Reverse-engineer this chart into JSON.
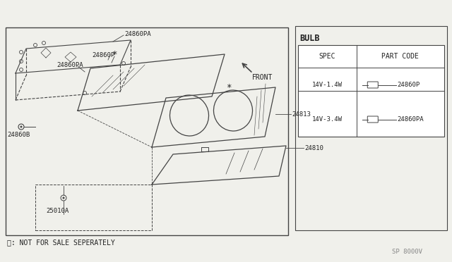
{
  "bg_color": "#f0f0eb",
  "line_color": "#444444",
  "text_color": "#222222",
  "watermark": "SP 8000V",
  "footnote": "※: NOT FOR SALE SEPERATELY",
  "bulb_title": "BULB",
  "table_headers": [
    "SPEC",
    "PART CODE"
  ],
  "table_rows": [
    [
      "14V-1.4W",
      "24860P"
    ],
    [
      "14V-3.4W",
      "24860PA"
    ]
  ],
  "front_label": "FRONT"
}
